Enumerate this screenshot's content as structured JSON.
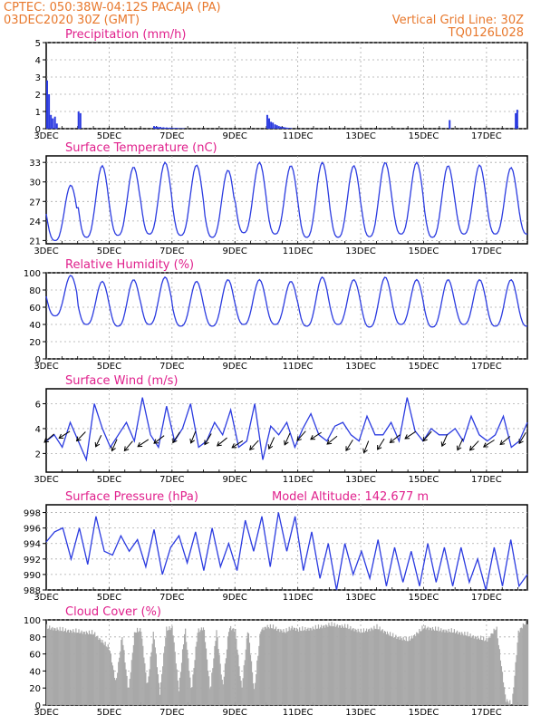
{
  "header": {
    "line1": "CPTEC:   050:38W-04:12S   PACAJA (PA)",
    "line2": "03DEC2020 30Z (GMT)",
    "right1": "Vertical Grid Line: 30Z",
    "right2": "TQ0126L028"
  },
  "colors": {
    "header": "#e8782c",
    "title": "#e0208c",
    "series": "#2b3be0",
    "cloud": "#a8a8a8",
    "arrow": "#000000",
    "grid": "#aaaaaa"
  },
  "x_ticks": [
    "3DEC",
    "5DEC",
    "7DEC",
    "9DEC",
    "11DEC",
    "13DEC",
    "15DEC",
    "17DEC"
  ],
  "chart_data": [
    {
      "type": "bar",
      "title": "Precipitation (mm/h)",
      "yticks": [
        "0",
        "1",
        "2",
        "3",
        "4",
        "5"
      ],
      "ylim": [
        0,
        5
      ],
      "x": [
        0.0,
        0.06,
        0.12,
        0.18,
        0.25,
        0.31,
        1.0,
        1.06,
        3.4,
        3.45,
        3.5,
        3.55,
        3.6,
        3.65,
        3.7,
        3.75,
        3.8,
        3.85,
        3.9,
        3.95,
        4.0,
        4.05,
        4.1,
        4.15,
        4.2,
        4.25,
        4.3,
        4.35,
        7.0,
        7.06,
        7.12,
        7.18,
        7.25,
        7.31,
        7.37,
        7.43,
        7.5,
        7.56,
        7.62,
        7.68,
        7.75,
        12.8,
        14.9,
        14.95
      ],
      "values": [
        2.8,
        2.0,
        0.8,
        0.6,
        0.7,
        0.3,
        1.0,
        0.9,
        0.15,
        0.1,
        0.12,
        0.08,
        0.1,
        0.06,
        0.08,
        0.05,
        0.07,
        0.04,
        0.06,
        0.05,
        0.04,
        0.03,
        0.05,
        0.03,
        0.02,
        0.03,
        0.02,
        0.02,
        0.8,
        0.6,
        0.4,
        0.35,
        0.25,
        0.2,
        0.15,
        0.12,
        0.1,
        0.08,
        0.06,
        0.05,
        0.04,
        0.5,
        0.9,
        1.1
      ],
      "xlabel": "",
      "ylabel": ""
    },
    {
      "type": "line",
      "title": "Surface Temperature (nC)",
      "yticks": [
        "21",
        "24",
        "27",
        "30",
        "33"
      ],
      "ylim": [
        20.5,
        34
      ],
      "series_min": [
        21.0,
        21.5,
        21.8,
        22.0,
        21.8,
        21.5,
        22.2,
        22.0,
        21.5,
        21.5,
        21.6,
        22.0,
        21.5,
        22.0,
        22.0
      ],
      "series_max": [
        29.5,
        32.5,
        32.3,
        33.0,
        32.6,
        31.8,
        33.0,
        32.5,
        33.0,
        32.5,
        33.0,
        33.0,
        32.5,
        32.6,
        32.2
      ],
      "xlabel": "",
      "ylabel": ""
    },
    {
      "type": "line",
      "title": "Relative Humidity (%)",
      "yticks": [
        "0",
        "20",
        "40",
        "60",
        "80",
        "100"
      ],
      "ylim": [
        0,
        100
      ],
      "series_min": [
        50.0,
        40.0,
        38.0,
        40.0,
        38.0,
        38.0,
        40.0,
        40.0,
        38.0,
        40.0,
        37.0,
        40.0,
        37.0,
        40.0,
        38.0
      ],
      "series_max": [
        97.0,
        90.0,
        92.0,
        95.0,
        90.0,
        92.0,
        92.0,
        90.0,
        95.0,
        92.0,
        95.0,
        92.0,
        92.0,
        92.0,
        92.0
      ],
      "xlabel": "",
      "ylabel": ""
    },
    {
      "type": "line",
      "title": "Surface Wind (m/s)",
      "yticks": [
        "2",
        "4",
        "6"
      ],
      "ylim": [
        0.5,
        7.2
      ],
      "values": [
        3.0,
        3.5,
        2.5,
        4.5,
        3.0,
        1.5,
        6.0,
        4.0,
        2.5,
        3.5,
        4.5,
        3.0,
        6.5,
        3.5,
        2.5,
        5.8,
        3.0,
        4.0,
        6.0,
        2.5,
        3.0,
        4.5,
        3.5,
        5.5,
        2.5,
        3.0,
        6.0,
        1.5,
        4.2,
        3.5,
        4.5,
        2.5,
        4.0,
        5.2,
        3.5,
        3.0,
        4.2,
        4.5,
        3.5,
        3.0,
        5.0,
        3.5,
        3.5,
        4.5,
        3.0,
        6.5,
        3.8,
        3.0,
        4.0,
        3.5,
        3.5,
        4.0,
        3.0,
        5.0,
        3.5,
        3.0,
        3.5,
        5.0,
        2.5,
        3.0,
        4.5
      ],
      "xlabel": "",
      "ylabel": ""
    },
    {
      "type": "line",
      "title": "Surface Pressure (hPa)",
      "annotation": "Model Altitude: 142.677 m",
      "yticks": [
        "988",
        "990",
        "992",
        "994",
        "996",
        "998"
      ],
      "ylim": [
        988,
        999
      ],
      "values": [
        994.2,
        995.5,
        996.0,
        992.0,
        996.0,
        991.3,
        997.5,
        993.0,
        992.5,
        995.0,
        993.0,
        994.5,
        991.0,
        995.8,
        990.0,
        993.5,
        995.0,
        991.5,
        995.5,
        990.5,
        996.0,
        991.0,
        994.0,
        990.5,
        997.0,
        993.0,
        997.5,
        991.0,
        998.0,
        993.0,
        997.5,
        990.5,
        995.5,
        989.5,
        994.0,
        988.0,
        994.0,
        990.0,
        993.0,
        989.5,
        994.5,
        988.5,
        993.5,
        989.0,
        993.0,
        988.5,
        994.0,
        989.0,
        993.5,
        988.5,
        993.5,
        989.0,
        992.0,
        988.0,
        993.5,
        988.5,
        994.5,
        988.5,
        990.0
      ],
      "xlabel": "",
      "ylabel": ""
    },
    {
      "type": "area",
      "title": "Cloud Cover (%)",
      "yticks": [
        "0",
        "20",
        "40",
        "60",
        "80",
        "100"
      ],
      "ylim": [
        0,
        100
      ],
      "x": [
        0.0,
        0.5,
        1.0,
        1.5,
        2.0,
        2.2,
        2.4,
        2.6,
        2.8,
        3.0,
        3.2,
        3.4,
        3.6,
        3.8,
        4.0,
        4.2,
        4.4,
        4.6,
        4.8,
        5.0,
        5.2,
        5.4,
        5.6,
        5.8,
        6.0,
        6.2,
        6.4,
        6.6,
        6.8,
        7.0,
        7.2,
        7.4,
        7.6,
        7.8,
        8.0,
        8.5,
        9.0,
        9.5,
        10.0,
        10.5,
        11.0,
        11.5,
        12.0,
        12.5,
        13.0,
        13.5,
        14.0,
        14.3,
        14.6,
        14.8,
        15.0,
        15.2
      ],
      "values": [
        95,
        92,
        90,
        88,
        70,
        30,
        85,
        20,
        90,
        92,
        25,
        90,
        18,
        92,
        95,
        22,
        95,
        20,
        90,
        95,
        20,
        92,
        25,
        95,
        92,
        22,
        95,
        20,
        92,
        96,
        95,
        92,
        90,
        95,
        92,
        94,
        98,
        96,
        90,
        95,
        85,
        80,
        95,
        92,
        90,
        85,
        80,
        95,
        10,
        5,
        90,
        100
      ],
      "xlabel": "",
      "ylabel": ""
    }
  ]
}
